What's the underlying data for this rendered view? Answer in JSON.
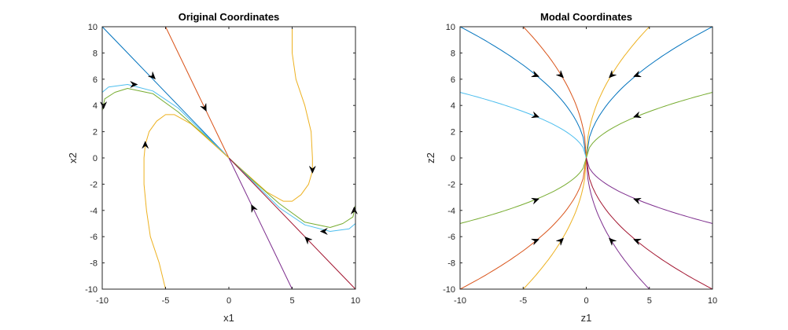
{
  "chart_data": [
    {
      "type": "line",
      "title": "Original Coordinates",
      "xlabel": "x1",
      "ylabel": "x2",
      "xlim": [
        -10,
        10
      ],
      "ylim": [
        -10,
        10
      ],
      "xticks": [
        "-10",
        "-5",
        "0",
        "5",
        "10"
      ],
      "yticks": [
        "-10",
        "-8",
        "-6",
        "-4",
        "-2",
        "0",
        "2",
        "4",
        "6",
        "8",
        "10"
      ],
      "grid": false,
      "series": [
        {
          "color": "#0072BD",
          "points": [
            [
              -10,
              10
            ],
            [
              -8,
              8
            ],
            [
              -6,
              6
            ],
            [
              -4,
              4
            ],
            [
              -2,
              2
            ],
            [
              0,
              0
            ]
          ],
          "arrows": [
            [
              -6,
              6.2,
              1,
              -1
            ]
          ]
        },
        {
          "color": "#D95319",
          "points": [
            [
              -5,
              10
            ],
            [
              -3.5,
              7
            ],
            [
              -2,
              4
            ],
            [
              -1,
              2
            ],
            [
              0,
              0
            ]
          ],
          "arrows": [
            [
              -1.9,
              3.8,
              1,
              -2
            ]
          ]
        },
        {
          "color": "#EDB120",
          "points": [
            [
              5,
              10
            ],
            [
              5,
              8
            ],
            [
              5.3,
              6
            ],
            [
              6,
              4
            ],
            [
              6.5,
              2
            ],
            [
              6.6,
              0
            ],
            [
              6.6,
              -1
            ],
            [
              6.3,
              -2
            ],
            [
              5.7,
              -2.8
            ],
            [
              5,
              -3.3
            ],
            [
              4.3,
              -3.3
            ],
            [
              3,
              -2.6
            ],
            [
              1.5,
              -1.3
            ],
            [
              0,
              0
            ]
          ],
          "arrows": [
            [
              6.6,
              -0.9,
              0,
              -1
            ]
          ]
        },
        {
          "color": "#7E2F8E",
          "points": [
            [
              5,
              -10
            ],
            [
              3.5,
              -7
            ],
            [
              2,
              -4
            ],
            [
              1,
              -2
            ],
            [
              0,
              0
            ]
          ],
          "arrows": [
            [
              1.9,
              -3.8,
              -1,
              2
            ]
          ]
        },
        {
          "color": "#77AC30",
          "points": [
            [
              -10,
              3.6
            ],
            [
              -9.8,
              4.5
            ],
            [
              -9,
              5
            ],
            [
              -8,
              5.3
            ],
            [
              -6,
              4.9
            ],
            [
              -4,
              3.5
            ],
            [
              -2,
              1.8
            ],
            [
              0,
              0
            ],
            [
              2,
              -1.8
            ],
            [
              4,
              -3.5
            ],
            [
              6,
              -4.9
            ],
            [
              8,
              -5.3
            ],
            [
              9,
              -5
            ],
            [
              9.8,
              -4.5
            ],
            [
              10,
              -3.6
            ]
          ],
          "arrows": [
            [
              -9.9,
              4.0,
              0,
              -1
            ],
            [
              9.9,
              -4.0,
              0,
              1
            ]
          ]
        },
        {
          "color": "#4DBEEE",
          "points": [
            [
              -10,
              5
            ],
            [
              -9.5,
              5.4
            ],
            [
              -8,
              5.6
            ],
            [
              -6,
              5.1
            ],
            [
              -4,
              3.8
            ],
            [
              -2,
              1.9
            ],
            [
              0,
              0
            ],
            [
              2,
              -1.9
            ],
            [
              4,
              -3.8
            ],
            [
              6,
              -5.1
            ],
            [
              8,
              -5.6
            ],
            [
              9.5,
              -5.4
            ],
            [
              10,
              -5
            ]
          ],
          "arrows": [
            [
              -7.5,
              5.6,
              1,
              0
            ],
            [
              7.5,
              -5.6,
              -1,
              0
            ]
          ]
        },
        {
          "color": "#A2142F",
          "points": [
            [
              10,
              -10
            ],
            [
              8,
              -8
            ],
            [
              6,
              -6
            ],
            [
              4,
              -4
            ],
            [
              2,
              -2
            ],
            [
              0,
              0
            ]
          ],
          "arrows": [
            [
              6.2,
              -6.2,
              -1,
              1
            ]
          ]
        },
        {
          "color": "#EDB120",
          "points": [
            [
              -5,
              -10
            ],
            [
              -5.5,
              -8
            ],
            [
              -6.2,
              -6
            ],
            [
              -6.5,
              -4
            ],
            [
              -6.7,
              -2
            ],
            [
              -6.7,
              0
            ],
            [
              -6.6,
              1
            ],
            [
              -6.3,
              2
            ],
            [
              -5.7,
              2.8
            ],
            [
              -5,
              3.3
            ],
            [
              -4.3,
              3.3
            ],
            [
              -3,
              2.6
            ],
            [
              -1.5,
              1.3
            ],
            [
              0,
              0
            ]
          ],
          "arrows": [
            [
              -6.6,
              1.0,
              0,
              1
            ]
          ]
        }
      ]
    },
    {
      "type": "line",
      "title": "Modal Coordinates",
      "xlabel": "z1",
      "ylabel": "z2",
      "xlim": [
        -10,
        10
      ],
      "ylim": [
        -10,
        10
      ],
      "xticks": [
        "-10",
        "-5",
        "0",
        "5",
        "10"
      ],
      "yticks": [
        "-10",
        "-8",
        "-6",
        "-4",
        "-2",
        "0",
        "2",
        "4",
        "6",
        "8",
        "10"
      ],
      "grid": false,
      "series": [
        {
          "color": "#0072BD",
          "form": "sqrt",
          "ends": [
            [
              -10,
              10
            ],
            [
              10,
              10
            ]
          ],
          "arrows": [
            [
              -4,
              6.3,
              1,
              -0.4
            ],
            [
              4,
              6.3,
              -1,
              -0.4
            ]
          ]
        },
        {
          "color": "#D95319",
          "form": "sqrt",
          "ends": [
            [
              -5,
              10
            ],
            [
              -10,
              -10
            ]
          ],
          "arrows": [
            [
              -2,
              6.3,
              1,
              -1
            ],
            [
              -4,
              -6.3,
              1,
              0.4
            ]
          ]
        },
        {
          "color": "#EDB120",
          "form": "sqrt",
          "ends": [
            [
              5,
              10
            ],
            [
              -5,
              -10
            ]
          ],
          "arrows": [
            [
              2,
              6.3,
              -1,
              -1
            ],
            [
              -2,
              -6.3,
              1,
              1
            ]
          ]
        },
        {
          "color": "#4DBEEE",
          "form": "sqrt",
          "ends": [
            [
              -10,
              5
            ]
          ],
          "arrows": [
            [
              -4,
              3.2,
              1,
              -0.35
            ]
          ]
        },
        {
          "color": "#77AC30",
          "form": "sqrt",
          "ends": [
            [
              10,
              5
            ],
            [
              -10,
              -5
            ]
          ],
          "arrows": [
            [
              4,
              3.2,
              -1,
              -0.35
            ],
            [
              -4,
              -3.2,
              1,
              0.35
            ]
          ]
        },
        {
          "color": "#7E2F8E",
          "form": "sqrt",
          "ends": [
            [
              10,
              -5
            ],
            [
              5,
              -10
            ]
          ],
          "arrows": [
            [
              4,
              -3.2,
              -1,
              0.35
            ],
            [
              2,
              -6.3,
              -1,
              1
            ]
          ]
        },
        {
          "color": "#A2142F",
          "form": "sqrt",
          "ends": [
            [
              10,
              -10
            ]
          ],
          "arrows": [
            [
              4,
              -6.3,
              -1,
              0.4
            ]
          ]
        }
      ]
    }
  ]
}
